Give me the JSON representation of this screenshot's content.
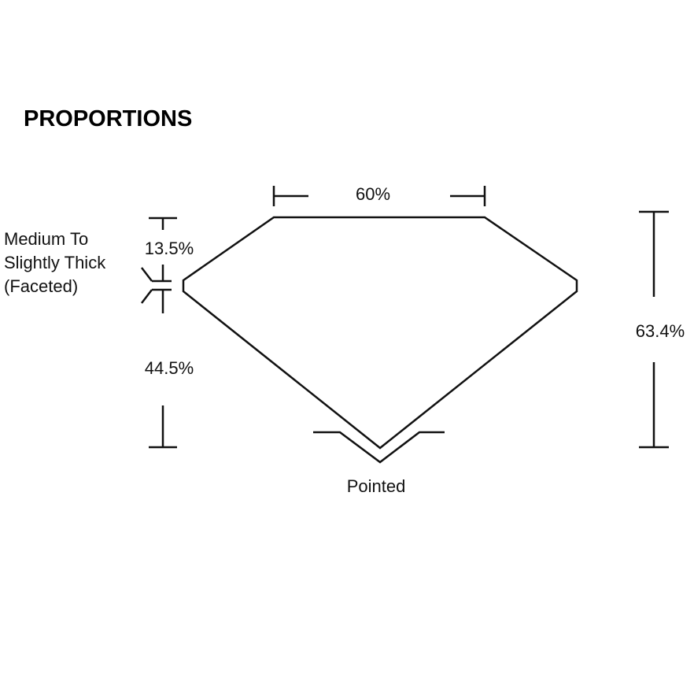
{
  "title": "PROPORTIONS",
  "labels": {
    "table": "60%",
    "crown": "13.5%",
    "pavilion": "44.5%",
    "total_depth": "63.4%",
    "culet": "Pointed",
    "girdle": [
      "Medium To",
      "Slightly Thick",
      "(Faceted)"
    ]
  },
  "colors": {
    "line": "#111111",
    "background": "#ffffff"
  }
}
